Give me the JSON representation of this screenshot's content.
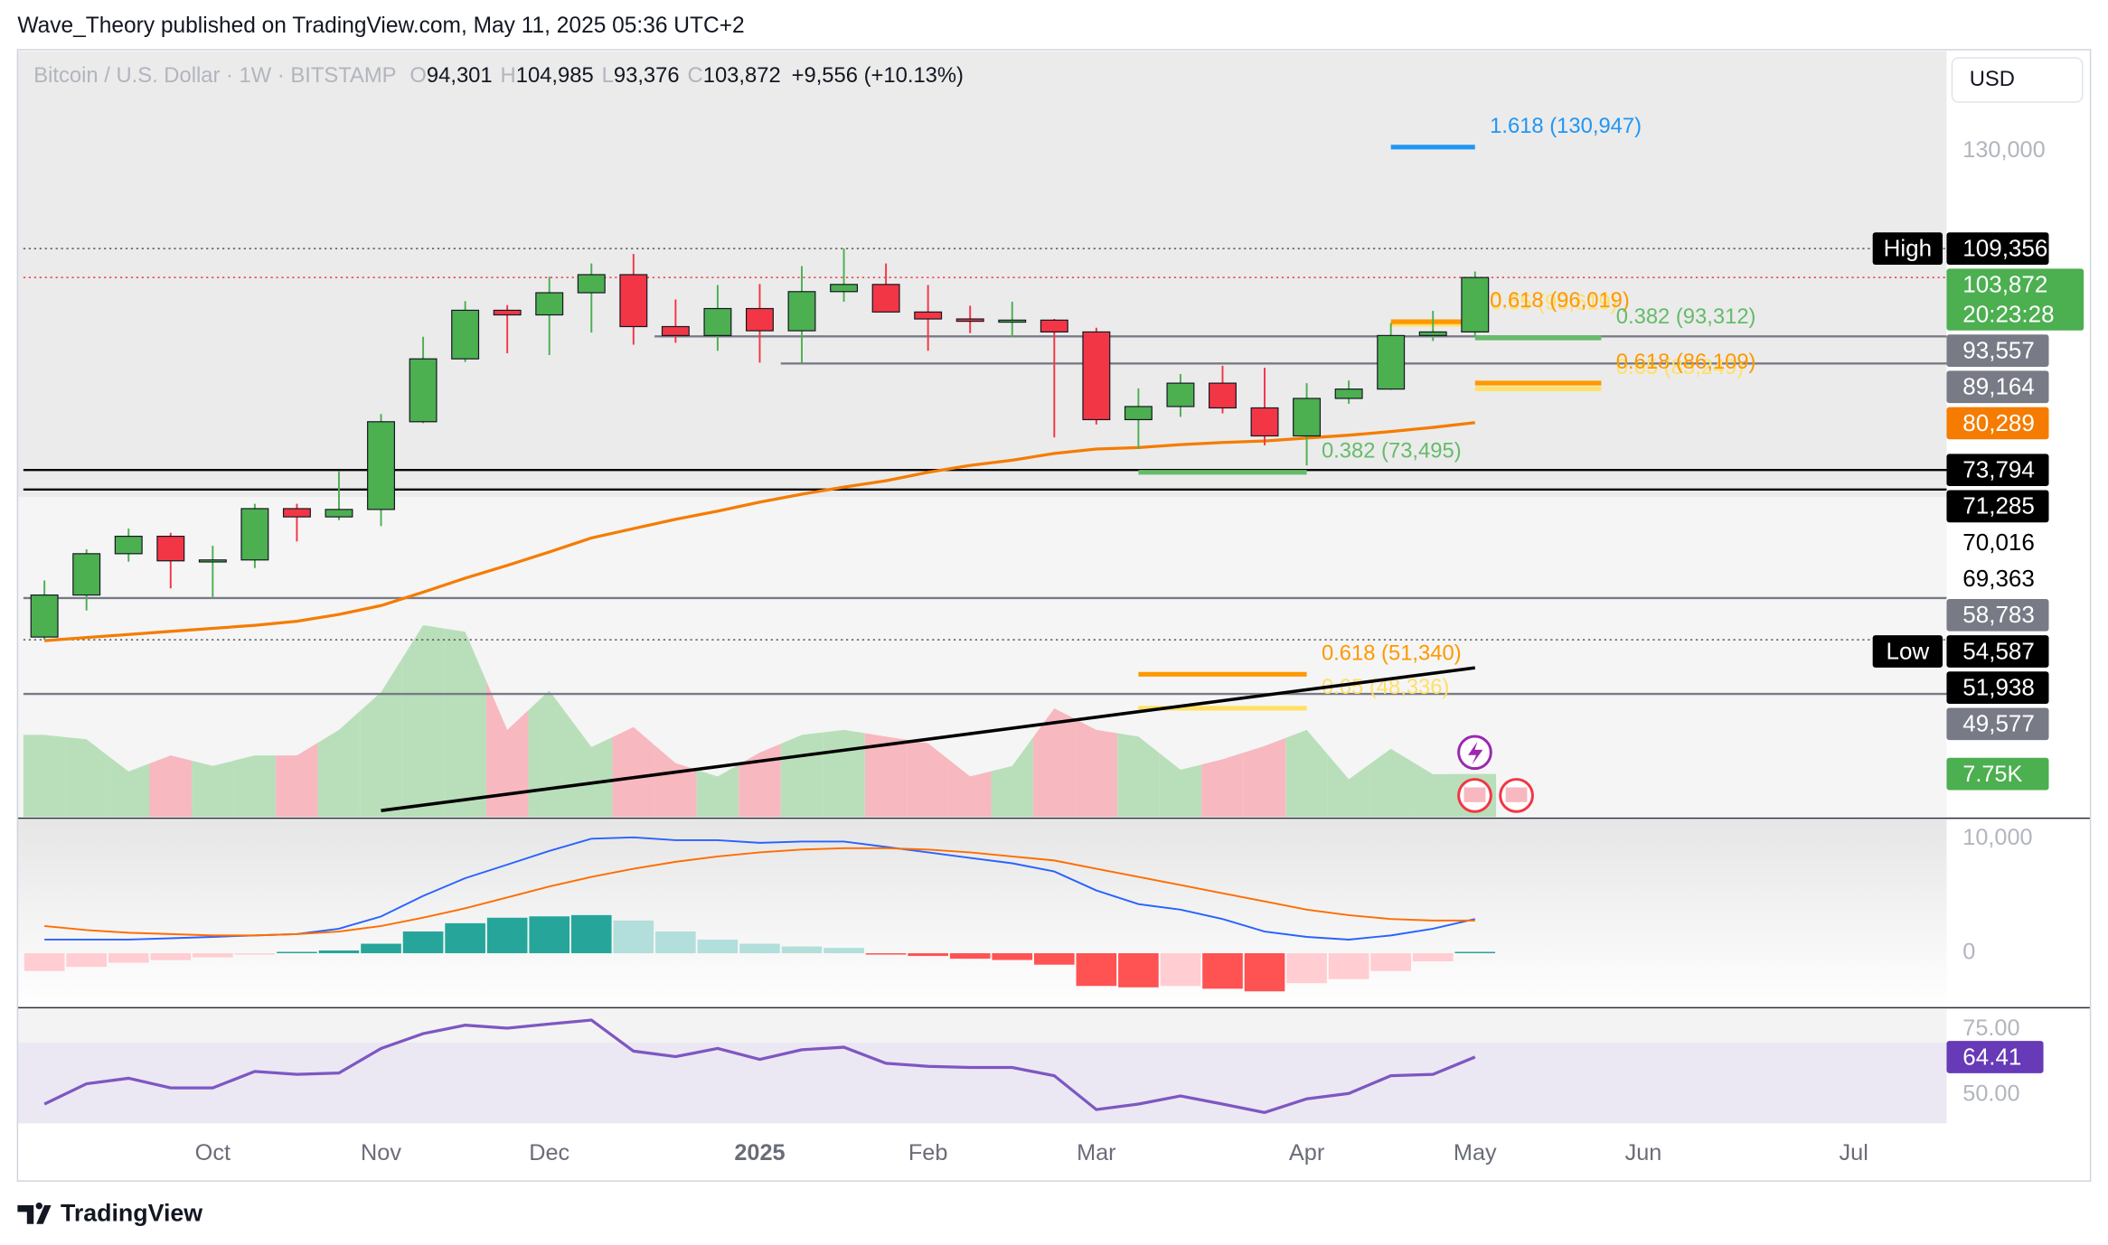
{
  "header": "Wave_Theory published on TradingView.com, May 11, 2025 05:36 UTC+2",
  "footer": "TradingView",
  "chart_data": [
    {
      "type": "candlestick",
      "title": "Bitcoin / U.S. Dollar · 1W · BITSTAMP",
      "legend": [
        {
          "key": "O",
          "value": "94,301"
        },
        {
          "key": "H",
          "value": "104,985"
        },
        {
          "key": "L",
          "value": "93,376"
        },
        {
          "key": "C",
          "value": "103,872"
        }
      ],
      "change": "+9,556 (+10.13%)",
      "currency": "USD",
      "categories": [
        null,
        null,
        null,
        null,
        "Oct",
        null,
        null,
        null,
        "Nov",
        null,
        null,
        null,
        "Dec",
        null,
        null,
        null,
        null,
        "2025",
        null,
        null,
        null,
        "Feb",
        null,
        null,
        null,
        "Mar",
        null,
        null,
        null,
        null,
        "Apr",
        null,
        null,
        null,
        "May",
        null,
        null,
        null,
        "Jun",
        null,
        null,
        null,
        null,
        "Jul",
        null
      ],
      "open": [
        54850,
        59100,
        63600,
        65600,
        62800,
        62900,
        68900,
        67900,
        68800,
        80400,
        89900,
        98000,
        97200,
        101100,
        104400,
        95200,
        93700,
        98300,
        94500,
        101300,
        102600,
        97700,
        96500,
        96100,
        96300,
        94300,
        80700,
        82600,
        86100,
        82400,
        78400,
        83800,
        85200,
        93700,
        94301,
        null,
        null,
        null,
        null,
        null,
        null,
        null,
        null,
        null,
        null
      ],
      "high": [
        60650,
        64100,
        66500,
        66000,
        64500,
        69500,
        69500,
        73600,
        81500,
        93500,
        99600,
        98900,
        104000,
        106500,
        108300,
        99900,
        102500,
        102700,
        106000,
        109356,
        106500,
        102500,
        98800,
        99500,
        96500,
        95000,
        85300,
        87500,
        88800,
        88500,
        86100,
        86500,
        95800,
        97900,
        104985,
        null,
        null,
        null,
        null,
        null,
        null,
        null,
        null,
        null,
        null
      ],
      "low": [
        54587,
        57500,
        62700,
        59800,
        58900,
        62000,
        65000,
        67500,
        66800,
        80200,
        89400,
        90800,
        90500,
        94200,
        92200,
        92500,
        91200,
        89300,
        89300,
        99500,
        97800,
        91200,
        94100,
        93400,
        78200,
        80000,
        76600,
        81100,
        81600,
        77100,
        74400,
        83000,
        85100,
        92800,
        93376,
        null,
        null,
        null,
        null,
        null,
        null,
        null,
        null,
        null,
        null
      ],
      "close": [
        59100,
        63600,
        65600,
        62800,
        62900,
        68900,
        67900,
        68800,
        80400,
        89900,
        98000,
        97200,
        101100,
        104400,
        95200,
        93700,
        98300,
        94500,
        101300,
        102600,
        97700,
        96500,
        96100,
        96300,
        94300,
        80700,
        82600,
        86100,
        82400,
        78400,
        83800,
        85200,
        93700,
        94300,
        103872,
        null,
        null,
        null,
        null,
        null,
        null,
        null,
        null,
        null,
        null
      ],
      "up_color": "#4caf50",
      "down_color": "#f23645",
      "ylim": [
        39850,
        155300
      ],
      "log": true,
      "yticks": [
        {
          "value": 130000,
          "label": "130,000"
        }
      ],
      "moving_average": {
        "color": "#f57c00",
        "values": [
          54500,
          54800,
          55100,
          55400,
          55700,
          56000,
          56400,
          57100,
          58000,
          59400,
          60900,
          62300,
          63800,
          65400,
          66500,
          67600,
          68600,
          69700,
          70700,
          71600,
          72400,
          73500,
          74400,
          75100,
          76000,
          76600,
          76800,
          77200,
          77500,
          77700,
          78100,
          78500,
          79000,
          79600,
          80289,
          null,
          null,
          null,
          null,
          null,
          null,
          null,
          null,
          null,
          null
        ]
      },
      "volume": {
        "up_color": "#b9dfba",
        "down_color": "#f8b8c0",
        "ylim": [
          0,
          40000
        ],
        "values": [
          14800,
          14000,
          8200,
          11100,
          9200,
          11100,
          11100,
          15700,
          22500,
          34600,
          33400,
          15700,
          22800,
          12600,
          16200,
          9700,
          7300,
          11600,
          14800,
          15700,
          14500,
          13300,
          7300,
          9200,
          19600,
          15700,
          14500,
          8500,
          10400,
          12800,
          15700,
          6800,
          12300,
          7700,
          7750,
          null,
          null,
          null,
          null,
          null,
          null,
          null,
          null,
          null,
          null
        ],
        "value_labels": [
          null,
          null,
          null,
          null,
          null,
          null,
          null,
          null,
          null,
          null,
          null,
          null,
          null,
          null,
          null,
          null,
          null,
          null,
          null,
          null,
          null,
          null,
          null,
          null,
          null,
          null,
          null,
          null,
          null,
          null,
          null,
          null,
          null,
          null,
          "7.75K",
          null,
          null,
          null,
          null,
          null,
          null,
          null,
          null,
          null,
          null
        ],
        "label_color": "#4caf50"
      },
      "levels": [
        {
          "value": 109356,
          "label": "109,356",
          "tag": "High",
          "color": "#000000",
          "text_color": "#ffffff",
          "line": "dotted",
          "line_color": "#555555",
          "from": 0
        },
        {
          "value": 103872,
          "label": "103,872",
          "sub": "20:23:28",
          "color": "#4caf50",
          "text_color": "#ffffff",
          "line": "dotted",
          "line_color": "#f23645",
          "from": 0
        },
        {
          "value": 93557,
          "label": "93,557",
          "color": "#787b86",
          "text_color": "#ffffff",
          "line": "solid",
          "line_color": "#787b86",
          "from": 15
        },
        {
          "value": 89164,
          "label": "89,164",
          "color": "#787b86",
          "text_color": "#ffffff",
          "line": "solid",
          "line_color": "#787b86",
          "from": 18
        },
        {
          "value": 80289,
          "label": "80,289",
          "color": "#f57c00",
          "text_color": "#ffffff"
        },
        {
          "value": 73794,
          "label": "73,794",
          "color": "#000000",
          "text_color": "#ffffff",
          "line": "solid",
          "line_color": "#000000",
          "from": 0
        },
        {
          "value": 71285,
          "label": "71,285",
          "color": "#000000",
          "text_color": "#ffffff",
          "line": "solid",
          "line_color": "#000000",
          "from": 0
        },
        {
          "value": 70016,
          "label": "70,016",
          "color": "#ffffff",
          "text_color": "#000000"
        },
        {
          "value": 69363,
          "label": "69,363",
          "color": "#ffffff",
          "text_color": "#000000"
        },
        {
          "value": 58783,
          "label": "58,783",
          "color": "#787b86",
          "text_color": "#ffffff",
          "line": "solid",
          "line_color": "#787b86",
          "from": 0
        },
        {
          "value": 54587,
          "label": "54,587",
          "tag": "Low",
          "color": "#000000",
          "text_color": "#ffffff",
          "line": "dotted",
          "line_color": "#555555",
          "from": 0
        },
        {
          "value": 51938,
          "label": "51,938",
          "color": "#000000",
          "text_color": "#ffffff"
        },
        {
          "value": 49577,
          "label": "49,577",
          "color": "#787b86",
          "text_color": "#ffffff",
          "line": "solid",
          "line_color": "#787b86",
          "from": 0
        }
      ],
      "fibs": [
        {
          "label": "1.618 (130,947)",
          "value": 130947,
          "color": "#2196f3",
          "from": 32,
          "to": 34
        },
        {
          "label": "0.65 (95,619)",
          "value": 95619,
          "color": "#ffe066",
          "from": 32,
          "to": 34
        },
        {
          "label": "0.618 (96,019)",
          "value": 96019,
          "color": "#ff9800",
          "from": 32,
          "to": 34
        },
        {
          "label": "0.382 (93,312)",
          "value": 93312,
          "color": "#66bb6a",
          "from": 34,
          "to": 37
        },
        {
          "label": "0.65 (85,249)",
          "value": 85249,
          "color": "#ffe066",
          "from": 34,
          "to": 37
        },
        {
          "label": "0.618 (86,109)",
          "value": 86109,
          "color": "#ff9800",
          "from": 34,
          "to": 37
        },
        {
          "label": "0.382 (73,495)",
          "value": 73495,
          "color": "#66bb6a",
          "from": 26,
          "to": 30
        },
        {
          "label": "0.618 (51,340)",
          "value": 51340,
          "color": "#ff9800",
          "from": 26,
          "to": 30
        },
        {
          "label": "0.65 (48,336)",
          "value": 48336,
          "color": "#ffe066",
          "from": 26,
          "to": 30
        }
      ],
      "trendline": {
        "color": "#000000",
        "start": {
          "index": 8,
          "value": 40300
        },
        "end": {
          "index": 34,
          "value": 51938
        }
      }
    },
    {
      "type": "macd",
      "ylim": [
        -4760,
        11670
      ],
      "yticks": [
        {
          "value": 10000,
          "label": "10,000"
        },
        0
      ],
      "macd": {
        "color": "#2962ff",
        "values": [
          1190,
          1190,
          1190,
          1310,
          1430,
          1550,
          1670,
          2140,
          3210,
          5000,
          6550,
          7740,
          8930,
          10000,
          10120,
          9880,
          9880,
          9640,
          9760,
          9760,
          9290,
          8810,
          8330,
          7860,
          7140,
          5480,
          4290,
          3810,
          2980,
          1900,
          1430,
          1190,
          1550,
          2140,
          2980
        ]
      },
      "signal": {
        "color": "#ff6d00",
        "values": [
          2380,
          2020,
          1790,
          1670,
          1550,
          1550,
          1670,
          1900,
          2380,
          3100,
          3930,
          4880,
          5830,
          6670,
          7380,
          7980,
          8450,
          8810,
          9050,
          9170,
          9170,
          9050,
          8810,
          8450,
          8100,
          7380,
          6670,
          5950,
          5240,
          4520,
          3810,
          3330,
          2980,
          2860,
          2860
        ]
      },
      "histogram": {
        "colors": [
          "#26a69a",
          "#b2dfdb",
          "#ffcdd2",
          "#ff5252"
        ],
        "values": [
          -1550,
          -1190,
          -830,
          -600,
          -360,
          -120,
          120,
          240,
          830,
          1900,
          2620,
          3100,
          3220,
          3330,
          2860,
          1900,
          1190,
          830,
          590,
          470,
          -120,
          -240,
          -480,
          -590,
          -1000,
          -2860,
          -2980,
          -2860,
          -3100,
          -3330,
          -2620,
          -2260,
          -1550,
          -710,
          120
        ]
      }
    },
    {
      "type": "rsi",
      "ylim": [
        39.06,
        82.8
      ],
      "yticks": [
        {
          "value": 75,
          "label": "75.00"
        },
        {
          "value": 50,
          "label": "50.00"
        }
      ],
      "band": [
        30,
        70
      ],
      "color": "#7e57c2",
      "label_color": "#673ab7",
      "values": [
        46.4,
        54.2,
        56.3,
        52.6,
        52.6,
        58.9,
        57.8,
        58.3,
        67.7,
        73.4,
        76.6,
        75.5,
        77.1,
        78.6,
        66.7,
        64.6,
        67.7,
        63.5,
        67.2,
        68.2,
        62.0,
        60.9,
        60.4,
        60.4,
        57.3,
        44.3,
        46.4,
        49.5,
        46.4,
        43.2,
        48.4,
        50.5,
        57.3,
        57.8,
        64.41
      ]
    }
  ]
}
